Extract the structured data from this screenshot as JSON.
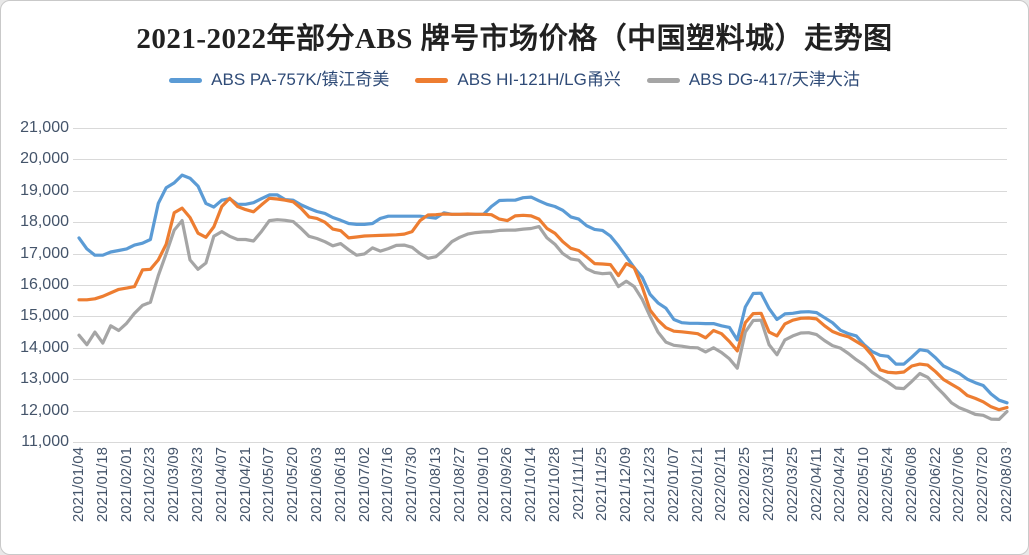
{
  "chart_data": {
    "type": "line",
    "title": "2021-2022年部分ABS 牌号市场价格（中国塑料城）走势图",
    "xlabel": "",
    "ylabel": "",
    "ylim": [
      11000,
      21000
    ],
    "grid": "horizontal",
    "legend_position": "top",
    "y_tick_labels": [
      "21,000",
      "20,000",
      "19,000",
      "18,000",
      "17,000",
      "16,000",
      "15,000",
      "14,000",
      "13,000",
      "12,000",
      "11,000"
    ],
    "x_tick_labels": [
      "2021/01/04",
      "2021/01/18",
      "2021/02/01",
      "2021/02/23",
      "2021/03/09",
      "2021/03/23",
      "2021/04/07",
      "2021/04/21",
      "2021/05/07",
      "2021/05/20",
      "2021/06/03",
      "2021/06/18",
      "2021/07/02",
      "2021/07/16",
      "2021/07/30",
      "2021/08/13",
      "2021/08/27",
      "2021/09/10",
      "2021/09/26",
      "2021/10/14",
      "2021/10/28",
      "2021/11/11",
      "2021/11/25",
      "2021/12/09",
      "2021/12/23",
      "2022/01/07",
      "2022/01/21",
      "2022/02/11",
      "2022/02/25",
      "2022/03/11",
      "2022/03/25",
      "2022/04/11",
      "2022/04/24",
      "2022/05/10",
      "2022/05/24",
      "2022/06/08",
      "2022/06/22",
      "2022/07/06",
      "2022/07/20",
      "2022/08/03"
    ],
    "points_per_tick_interval": 3,
    "series": [
      {
        "name": "ABS PA-757K/镇江奇美",
        "color": "#5B9BD5",
        "values": [
          17500,
          17150,
          16950,
          16950,
          17050,
          17100,
          17150,
          17270,
          17330,
          17450,
          18600,
          19100,
          19250,
          19500,
          19400,
          19150,
          18600,
          18480,
          18700,
          18750,
          18570,
          18570,
          18620,
          18750,
          18870,
          18870,
          18720,
          18700,
          18550,
          18440,
          18340,
          18280,
          18150,
          18060,
          17960,
          17930,
          17930,
          17960,
          18120,
          18190,
          18190,
          18190,
          18190,
          18190,
          18160,
          18130,
          18300,
          18250,
          18250,
          18250,
          18250,
          18250,
          18500,
          18690,
          18700,
          18700,
          18780,
          18800,
          18680,
          18570,
          18500,
          18380,
          18170,
          18100,
          17890,
          17770,
          17740,
          17560,
          17250,
          16900,
          16550,
          16250,
          15700,
          15430,
          15260,
          14900,
          14800,
          14780,
          14780,
          14770,
          14770,
          14700,
          14650,
          14250,
          15300,
          15730,
          15740,
          15250,
          14900,
          15080,
          15100,
          15140,
          15150,
          15120,
          14960,
          14800,
          14560,
          14450,
          14380,
          14100,
          13880,
          13760,
          13730,
          13480,
          13480,
          13700,
          13940,
          13900,
          13680,
          13420,
          13300,
          13180,
          13000,
          12890,
          12800,
          12530,
          12330,
          12250
        ]
      },
      {
        "name": "ABS HI-121H/LG甬兴",
        "color": "#ED7D31",
        "values": [
          15530,
          15530,
          15560,
          15640,
          15750,
          15860,
          15900,
          15950,
          16480,
          16500,
          16800,
          17300,
          18300,
          18450,
          18150,
          17650,
          17520,
          17850,
          18500,
          18760,
          18500,
          18400,
          18330,
          18550,
          18760,
          18740,
          18700,
          18650,
          18440,
          18170,
          18120,
          18000,
          17780,
          17730,
          17500,
          17530,
          17560,
          17570,
          17580,
          17590,
          17600,
          17620,
          17700,
          18050,
          18230,
          18240,
          18260,
          18250,
          18250,
          18260,
          18250,
          18250,
          18240,
          18100,
          18050,
          18200,
          18220,
          18200,
          18100,
          17800,
          17650,
          17380,
          17170,
          17100,
          16900,
          16680,
          16670,
          16650,
          16300,
          16680,
          16550,
          15950,
          15200,
          14880,
          14640,
          14530,
          14510,
          14480,
          14450,
          14320,
          14550,
          14450,
          14200,
          13900,
          14800,
          15090,
          15100,
          14500,
          14380,
          14760,
          14880,
          14940,
          14950,
          14920,
          14700,
          14520,
          14420,
          14350,
          14200,
          14050,
          13750,
          13300,
          13220,
          13200,
          13230,
          13420,
          13480,
          13450,
          13240,
          12990,
          12840,
          12690,
          12480,
          12390,
          12280,
          12120,
          12030,
          12100
        ]
      },
      {
        "name": "ABS DG-417/天津大沽",
        "color": "#A5A5A5",
        "values": [
          14400,
          14100,
          14500,
          14150,
          14700,
          14550,
          14780,
          15100,
          15350,
          15450,
          16300,
          17000,
          17750,
          18050,
          16800,
          16500,
          16700,
          17550,
          17700,
          17550,
          17450,
          17450,
          17400,
          17700,
          18050,
          18080,
          18060,
          18020,
          17800,
          17550,
          17480,
          17380,
          17250,
          17320,
          17120,
          16950,
          16990,
          17180,
          17080,
          17160,
          17260,
          17270,
          17200,
          17000,
          16850,
          16900,
          17120,
          17380,
          17520,
          17620,
          17670,
          17690,
          17700,
          17740,
          17750,
          17750,
          17780,
          17800,
          17860,
          17500,
          17300,
          17000,
          16830,
          16790,
          16520,
          16400,
          16360,
          16380,
          15950,
          16120,
          15950,
          15550,
          15000,
          14500,
          14180,
          14080,
          14050,
          14010,
          14000,
          13870,
          14000,
          13850,
          13650,
          13350,
          14500,
          14870,
          14880,
          14100,
          13780,
          14250,
          14380,
          14470,
          14480,
          14420,
          14230,
          14070,
          13990,
          13820,
          13620,
          13450,
          13220,
          13050,
          12900,
          12720,
          12700,
          12930,
          13180,
          13060,
          12780,
          12530,
          12250,
          12090,
          11990,
          11880,
          11850,
          11730,
          11720,
          11970
        ]
      }
    ]
  },
  "colors": {
    "background": "#FFFFFF",
    "border": "#C9C9C9",
    "gridline": "#D9D9D9",
    "axis_text": "#44546A",
    "legend_text": "#2F4B77",
    "title_text": "#212121",
    "series_blue": "#5B9BD5",
    "series_orange": "#ED7D31",
    "series_gray": "#A5A5A5"
  }
}
